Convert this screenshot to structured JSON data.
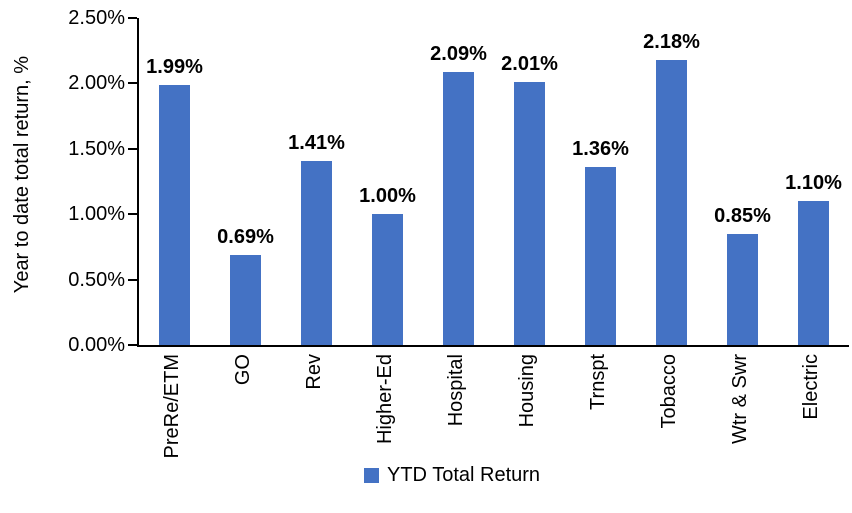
{
  "chart_data": {
    "type": "bar",
    "title": "",
    "xlabel": "",
    "ylabel": "Year to date total return, %",
    "categories": [
      "PreRe/ETM",
      "GO",
      "Rev",
      "Higher-Ed",
      "Hospital",
      "Housing",
      "Trnspt",
      "Tobacco",
      "Wtr & Swr",
      "Electric"
    ],
    "values": [
      1.99,
      0.69,
      1.41,
      1.0,
      2.09,
      2.01,
      1.36,
      2.18,
      0.85,
      1.1
    ],
    "data_labels": [
      "1.99%",
      "0.69%",
      "1.41%",
      "1.00%",
      "2.09%",
      "2.01%",
      "1.36%",
      "2.18%",
      "0.85%",
      "1.10%"
    ],
    "ylim": [
      0,
      2.5
    ],
    "yticks": [
      0,
      0.5,
      1.0,
      1.5,
      2.0,
      2.5
    ],
    "ytick_labels": [
      "0.00%",
      "0.50%",
      "1.00%",
      "1.50%",
      "2.00%",
      "2.50%"
    ],
    "grid": false,
    "bar_color": "#4472C4",
    "axis_color": "#000000",
    "legend": {
      "position": "bottom",
      "entries": [
        {
          "label": "YTD Total Return",
          "color": "#4472C4"
        }
      ]
    }
  }
}
